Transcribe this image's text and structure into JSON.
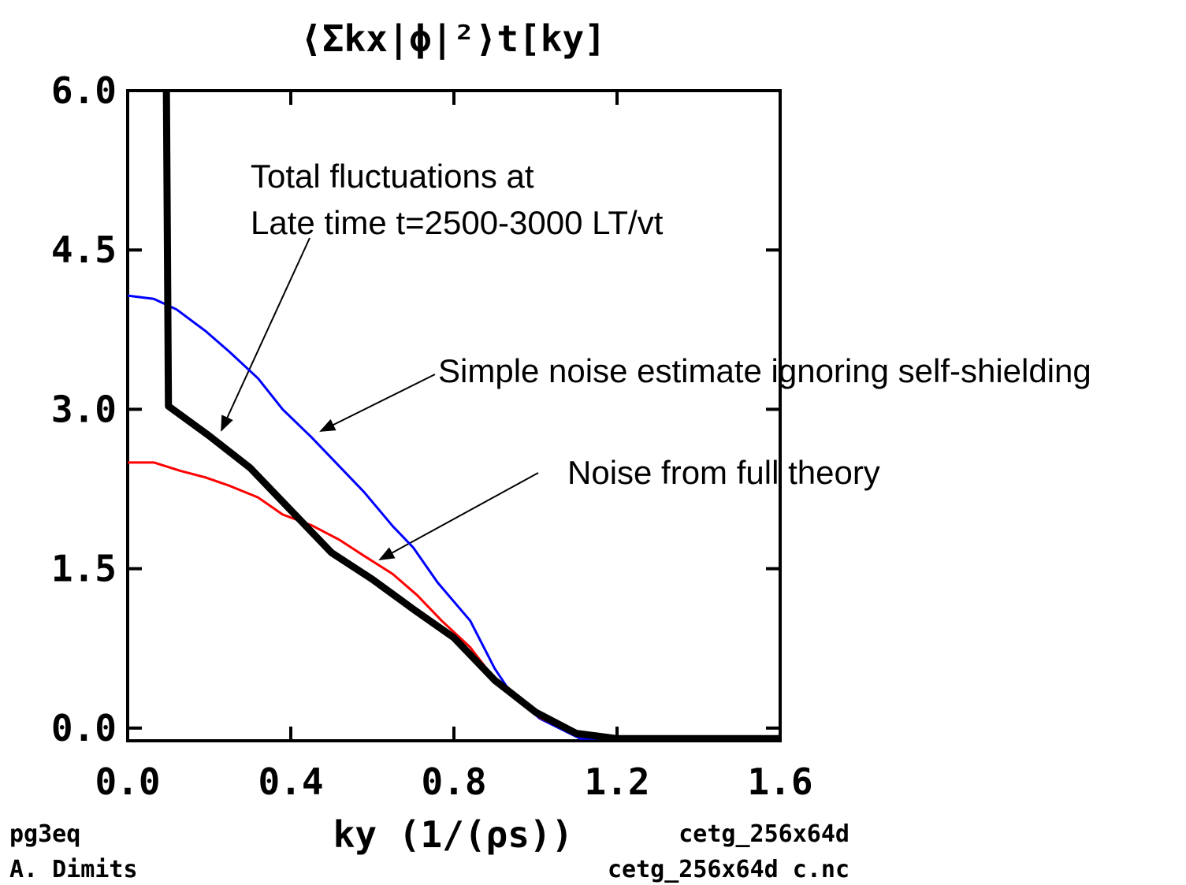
{
  "chart_data": {
    "type": "line",
    "title": "⟨Σkx|ϕ|²⟩t[ky]",
    "x_label": "ky (1/(ρs))",
    "xlim": [
      0,
      1.6
    ],
    "ylim": [
      -0.12,
      6.0
    ],
    "xticks": [
      {
        "value": 0,
        "label": "0.0"
      },
      0.4,
      0.8,
      1.2,
      1.6
    ],
    "yticks": [
      {
        "value": 0,
        "label": "0.0"
      },
      1.5,
      {
        "value": 3,
        "label": "3.0"
      },
      4.5,
      {
        "value": 6,
        "label": "6.0"
      }
    ],
    "series": [
      {
        "color": "#0000ff",
        "width": 3,
        "x": [
          0,
          0.064,
          0.12,
          0.19,
          0.25,
          0.32,
          0.38,
          0.45,
          0.52,
          0.58,
          0.65,
          0.7,
          0.76,
          0.84,
          0.9,
          0.94,
          1.01,
          1.11,
          1.6
        ],
        "values": [
          4.07,
          4.04,
          3.94,
          3.74,
          3.54,
          3.29,
          3.0,
          2.74,
          2.46,
          2.22,
          1.9,
          1.7,
          1.37,
          1.01,
          0.56,
          0.33,
          0.09,
          -0.1,
          -0.1
        ]
      },
      {
        "color": "#ff0000",
        "width": 3,
        "x": [
          0,
          0.064,
          0.13,
          0.19,
          0.25,
          0.32,
          0.38,
          0.45,
          0.52,
          0.58,
          0.65,
          0.71,
          0.77,
          0.84,
          0.9,
          0.96,
          1.01,
          1.11,
          1.6
        ],
        "values": [
          2.5,
          2.5,
          2.42,
          2.36,
          2.28,
          2.17,
          2.01,
          1.91,
          1.77,
          1.62,
          1.45,
          1.25,
          1.01,
          0.76,
          0.46,
          0.25,
          0.1,
          -0.08,
          -0.1
        ]
      },
      {
        "color": "#000000",
        "width": 9,
        "x": [
          0.095,
          0.1,
          0.2,
          0.3,
          0.4,
          0.5,
          0.6,
          0.7,
          0.8,
          0.9,
          1.0,
          1.1,
          1.2,
          1.6
        ],
        "values": [
          6.0,
          3.03,
          2.75,
          2.45,
          2.05,
          1.65,
          1.4,
          1.12,
          0.85,
          0.45,
          0.15,
          -0.05,
          -0.1,
          -0.1
        ]
      }
    ],
    "annotations": [
      "Total fluctuations at",
      "Late time t=2500-3000 LT/vt",
      "Simple noise estimate ignoring self-shielding",
      "Noise from full theory"
    ],
    "footer_left": [
      "pg3eq",
      "A. Dimits"
    ],
    "footer_right": [
      "cetg_256x64d",
      "cetg_256x64d c.nc"
    ]
  }
}
